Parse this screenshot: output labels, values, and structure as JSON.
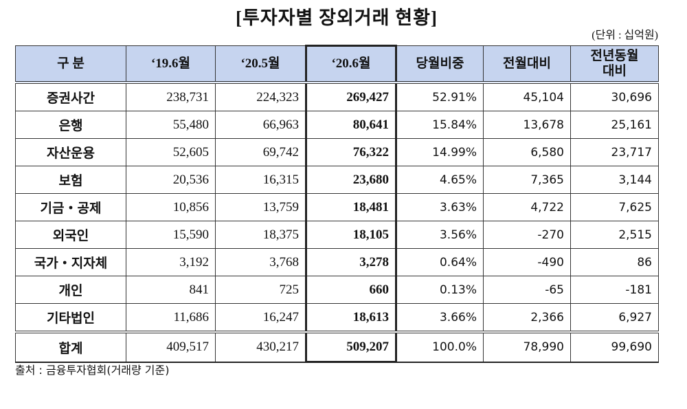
{
  "header": {
    "title": "[투자자별 장외거래 현황]",
    "unit": "(단위 : 십억원)"
  },
  "table": {
    "columns": [
      "구  분",
      "‘19.6월",
      "‘20.5월",
      "‘20.6월",
      "당월비중",
      "전월대비",
      "전년동월\n대비"
    ],
    "rows": [
      [
        "증권사간",
        "238,731",
        "224,323",
        "269,427",
        "52.91%",
        "45,104",
        "30,696"
      ],
      [
        "은행",
        "55,480",
        "66,963",
        "80,641",
        "15.84%",
        "13,678",
        "25,161"
      ],
      [
        "자산운용",
        "52,605",
        "69,742",
        "76,322",
        "14.99%",
        "6,580",
        "23,717"
      ],
      [
        "보험",
        "20,536",
        "16,315",
        "23,680",
        "4.65%",
        "7,365",
        "3,144"
      ],
      [
        "기금・공제",
        "10,856",
        "13,759",
        "18,481",
        "3.63%",
        "4,722",
        "7,625"
      ],
      [
        "외국인",
        "15,590",
        "18,375",
        "18,105",
        "3.56%",
        "-270",
        "2,515"
      ],
      [
        "국가・지자체",
        "3,192",
        "3,768",
        "3,278",
        "0.64%",
        "-490",
        "86"
      ],
      [
        "개인",
        "841",
        "725",
        "660",
        "0.13%",
        "-65",
        "-181"
      ],
      [
        "기타법인",
        "11,686",
        "16,247",
        "18,613",
        "3.66%",
        "2,366",
        "6,927"
      ],
      [
        "합계",
        "409,517",
        "430,217",
        "509,207",
        "100.0%",
        "78,990",
        "99,690"
      ]
    ]
  },
  "footer": {
    "source": "출처 : 금융투자협회(거래량 기준)"
  }
}
